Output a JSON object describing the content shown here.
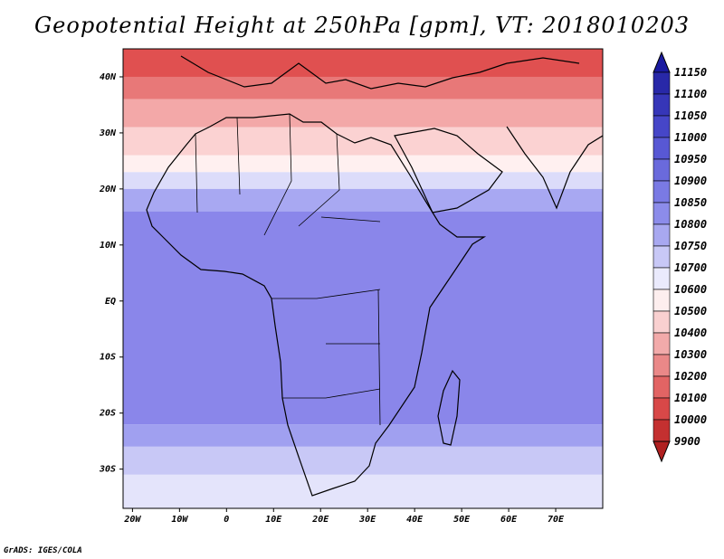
{
  "title": "Geopotential Height at 250hPa [gpm], VT: 2018010203",
  "credit": "GrADS: IGES/COLA",
  "map": {
    "lon_range": [
      -22,
      80
    ],
    "lat_range": [
      -37,
      45
    ],
    "x_ticks": [
      {
        "lon": -20,
        "label": "20W"
      },
      {
        "lon": -10,
        "label": "10W"
      },
      {
        "lon": 0,
        "label": "0"
      },
      {
        "lon": 10,
        "label": "10E"
      },
      {
        "lon": 20,
        "label": "20E"
      },
      {
        "lon": 30,
        "label": "30E"
      },
      {
        "lon": 40,
        "label": "40E"
      },
      {
        "lon": 50,
        "label": "50E"
      },
      {
        "lon": 60,
        "label": "60E"
      },
      {
        "lon": 70,
        "label": "70E"
      }
    ],
    "y_ticks": [
      {
        "lat": 40,
        "label": "40N"
      },
      {
        "lat": 30,
        "label": "30N"
      },
      {
        "lat": 20,
        "label": "20N"
      },
      {
        "lat": 10,
        "label": "10N"
      },
      {
        "lat": 0,
        "label": "EQ"
      },
      {
        "lat": -10,
        "label": "10S"
      },
      {
        "lat": -20,
        "label": "20S"
      },
      {
        "lat": -30,
        "label": "30S"
      }
    ],
    "field_bands": [
      {
        "lat_top": 45,
        "lat_bottom": 40,
        "color": "#e05050"
      },
      {
        "lat_top": 40,
        "lat_bottom": 36,
        "color": "#e87878"
      },
      {
        "lat_top": 36,
        "lat_bottom": 31,
        "color": "#f3a8a8"
      },
      {
        "lat_top": 31,
        "lat_bottom": 26,
        "color": "#fbd2d2"
      },
      {
        "lat_top": 26,
        "lat_bottom": 23,
        "color": "#fff0f0"
      },
      {
        "lat_top": 23,
        "lat_bottom": 20,
        "color": "#dcdcfa"
      },
      {
        "lat_top": 20,
        "lat_bottom": 16,
        "color": "#a8a8f2"
      },
      {
        "lat_top": 16,
        "lat_bottom": -22,
        "color": "#8a86ea"
      },
      {
        "lat_top": -22,
        "lat_bottom": -26,
        "color": "#a0a0f0"
      },
      {
        "lat_top": -26,
        "lat_bottom": -31,
        "color": "#c8c8f6"
      },
      {
        "lat_top": -31,
        "lat_bottom": -37,
        "color": "#e4e4fb"
      }
    ]
  },
  "colorbar": {
    "top_arrow_color": "#1a1aa0",
    "bottom_arrow_color": "#b02020",
    "levels": [
      "11150",
      "11100",
      "11050",
      "11000",
      "10950",
      "10900",
      "10850",
      "10800",
      "10750",
      "10700",
      "10600",
      "10500",
      "10400",
      "10300",
      "10200",
      "10100",
      "10000",
      "9900"
    ],
    "colors": [
      "#2828a8",
      "#3636b8",
      "#4646c8",
      "#5858d4",
      "#6a6adc",
      "#7a7ae4",
      "#8c8cea",
      "#a8a8f0",
      "#c8c8f6",
      "#eaeafc",
      "#fdeeee",
      "#f9d0d0",
      "#f2aaaa",
      "#ea8888",
      "#e26464",
      "#d84848",
      "#c43030"
    ]
  }
}
